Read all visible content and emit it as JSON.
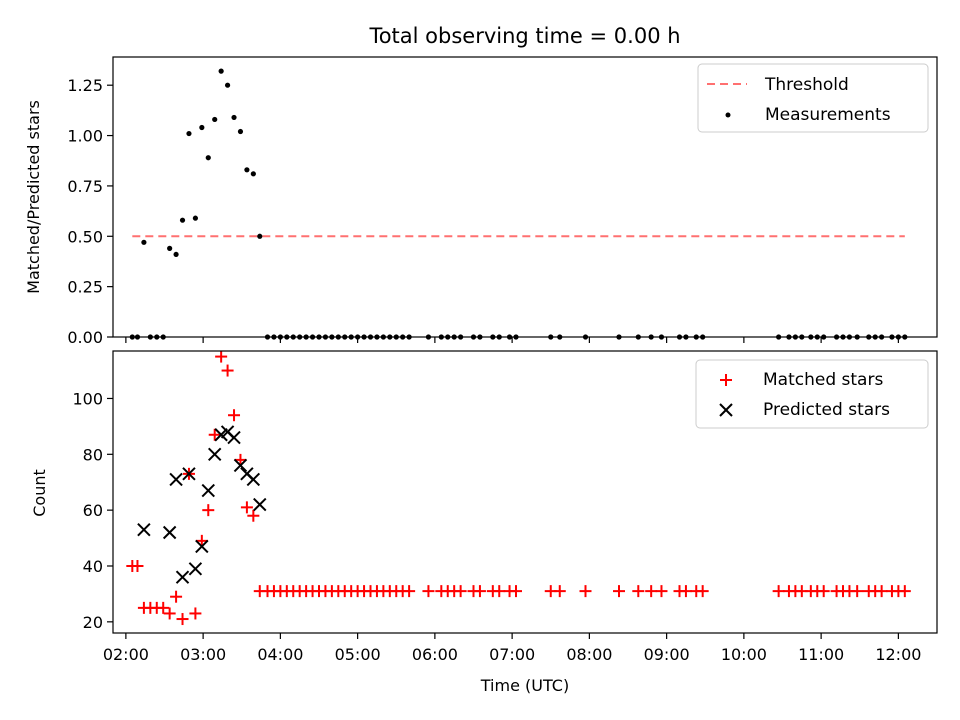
{
  "title": "Total observing time = 0.00 h",
  "xlabel": "Time (UTC)",
  "colors": {
    "threshold": "#ff7070",
    "measure": "#000000",
    "matched": "#ff0000",
    "predicted": "#000000"
  },
  "chart_data": [
    {
      "type": "scatter",
      "ylabel": "Matched/Predicted stars",
      "ylim": [
        0,
        1.39
      ],
      "xlim": [
        "01:50",
        "12:30"
      ],
      "x_unit": "time of day (UTC, HH:MM)",
      "yticks": [
        "0.00",
        "0.25",
        "0.50",
        "0.75",
        "1.00",
        "1.25"
      ],
      "legend_position": "top-right",
      "grid": false,
      "threshold": {
        "name": "Threshold",
        "value": 0.5,
        "x_range": [
          "02:05",
          "12:05"
        ],
        "style": "dashed"
      },
      "series": [
        {
          "name": "Measurements",
          "points": [
            [
              "02:05",
              0
            ],
            [
              "02:09",
              0
            ],
            [
              "02:14",
              0.47
            ],
            [
              "02:19",
              0
            ],
            [
              "02:24",
              0
            ],
            [
              "02:29",
              0
            ],
            [
              "02:34",
              0.44
            ],
            [
              "02:39",
              0.41
            ],
            [
              "02:44",
              0.58
            ],
            [
              "02:49",
              1.01
            ],
            [
              "02:54",
              0.59
            ],
            [
              "02:59",
              1.04
            ],
            [
              "03:04",
              0.89
            ],
            [
              "03:09",
              1.08
            ],
            [
              "03:14",
              1.32
            ],
            [
              "03:19",
              1.25
            ],
            [
              "03:24",
              1.09
            ],
            [
              "03:29",
              1.02
            ],
            [
              "03:34",
              0.83
            ],
            [
              "03:39",
              0.81
            ],
            [
              "03:44",
              0.5
            ],
            [
              "03:50",
              0
            ],
            [
              "03:55",
              0
            ],
            [
              "04:00",
              0
            ],
            [
              "04:05",
              0
            ],
            [
              "04:10",
              0
            ],
            [
              "04:15",
              0
            ],
            [
              "04:20",
              0
            ],
            [
              "04:25",
              0
            ],
            [
              "04:30",
              0
            ],
            [
              "04:35",
              0
            ],
            [
              "04:40",
              0
            ],
            [
              "04:45",
              0
            ],
            [
              "04:50",
              0
            ],
            [
              "04:55",
              0
            ],
            [
              "05:00",
              0
            ],
            [
              "05:05",
              0
            ],
            [
              "05:10",
              0
            ],
            [
              "05:15",
              0
            ],
            [
              "05:20",
              0
            ],
            [
              "05:25",
              0
            ],
            [
              "05:30",
              0
            ],
            [
              "05:35",
              0
            ],
            [
              "05:40",
              0
            ],
            [
              "05:55",
              0
            ],
            [
              "06:05",
              0
            ],
            [
              "06:10",
              0
            ],
            [
              "06:15",
              0
            ],
            [
              "06:20",
              0
            ],
            [
              "06:30",
              0
            ],
            [
              "06:35",
              0
            ],
            [
              "06:45",
              0
            ],
            [
              "06:50",
              0
            ],
            [
              "06:58",
              0
            ],
            [
              "07:03",
              0
            ],
            [
              "07:30",
              0
            ],
            [
              "07:37",
              0
            ],
            [
              "07:57",
              0
            ],
            [
              "08:23",
              0
            ],
            [
              "08:38",
              0
            ],
            [
              "08:48",
              0
            ],
            [
              "08:56",
              0
            ],
            [
              "09:10",
              0
            ],
            [
              "09:15",
              0
            ],
            [
              "09:23",
              0
            ],
            [
              "09:28",
              0
            ],
            [
              "10:27",
              0
            ],
            [
              "10:35",
              0
            ],
            [
              "10:40",
              0
            ],
            [
              "10:45",
              0
            ],
            [
              "10:52",
              0
            ],
            [
              "10:57",
              0
            ],
            [
              "11:02",
              0
            ],
            [
              "11:12",
              0
            ],
            [
              "11:17",
              0
            ],
            [
              "11:22",
              0
            ],
            [
              "11:28",
              0
            ],
            [
              "11:37",
              0
            ],
            [
              "11:42",
              0
            ],
            [
              "11:47",
              0
            ],
            [
              "11:55",
              0
            ],
            [
              "12:00",
              0
            ],
            [
              "12:05",
              0
            ]
          ]
        }
      ]
    },
    {
      "type": "scatter",
      "ylabel": "Count",
      "ylim": [
        16,
        117
      ],
      "xlim": [
        "01:50",
        "12:30"
      ],
      "x_unit": "time of day (UTC, HH:MM)",
      "yticks": [
        "20",
        "40",
        "60",
        "80",
        "100"
      ],
      "xticks": [
        "02:00",
        "03:00",
        "04:00",
        "05:00",
        "06:00",
        "07:00",
        "08:00",
        "09:00",
        "10:00",
        "11:00",
        "12:00"
      ],
      "legend_position": "top-right",
      "grid": false,
      "series": [
        {
          "name": "Matched stars",
          "marker": "plus",
          "points": [
            [
              "02:05",
              40
            ],
            [
              "02:09",
              40
            ],
            [
              "02:14",
              25
            ],
            [
              "02:19",
              25
            ],
            [
              "02:24",
              25
            ],
            [
              "02:29",
              25
            ],
            [
              "02:34",
              23
            ],
            [
              "02:39",
              29
            ],
            [
              "02:44",
              21
            ],
            [
              "02:49",
              73
            ],
            [
              "02:54",
              23
            ],
            [
              "02:59",
              49
            ],
            [
              "03:04",
              60
            ],
            [
              "03:09",
              87
            ],
            [
              "03:14",
              115
            ],
            [
              "03:19",
              110
            ],
            [
              "03:24",
              94
            ],
            [
              "03:29",
              78
            ],
            [
              "03:34",
              61
            ],
            [
              "03:39",
              58
            ],
            [
              "03:44",
              31
            ],
            [
              "03:50",
              31
            ],
            [
              "03:55",
              31
            ],
            [
              "04:00",
              31
            ],
            [
              "04:05",
              31
            ],
            [
              "04:10",
              31
            ],
            [
              "04:15",
              31
            ],
            [
              "04:20",
              31
            ],
            [
              "04:25",
              31
            ],
            [
              "04:30",
              31
            ],
            [
              "04:35",
              31
            ],
            [
              "04:40",
              31
            ],
            [
              "04:45",
              31
            ],
            [
              "04:50",
              31
            ],
            [
              "04:55",
              31
            ],
            [
              "05:00",
              31
            ],
            [
              "05:05",
              31
            ],
            [
              "05:10",
              31
            ],
            [
              "05:15",
              31
            ],
            [
              "05:20",
              31
            ],
            [
              "05:25",
              31
            ],
            [
              "05:30",
              31
            ],
            [
              "05:35",
              31
            ],
            [
              "05:40",
              31
            ],
            [
              "05:55",
              31
            ],
            [
              "06:05",
              31
            ],
            [
              "06:10",
              31
            ],
            [
              "06:15",
              31
            ],
            [
              "06:20",
              31
            ],
            [
              "06:30",
              31
            ],
            [
              "06:35",
              31
            ],
            [
              "06:45",
              31
            ],
            [
              "06:50",
              31
            ],
            [
              "06:58",
              31
            ],
            [
              "07:03",
              31
            ],
            [
              "07:30",
              31
            ],
            [
              "07:37",
              31
            ],
            [
              "07:57",
              31
            ],
            [
              "08:23",
              31
            ],
            [
              "08:38",
              31
            ],
            [
              "08:48",
              31
            ],
            [
              "08:56",
              31
            ],
            [
              "09:10",
              31
            ],
            [
              "09:15",
              31
            ],
            [
              "09:23",
              31
            ],
            [
              "09:28",
              31
            ],
            [
              "10:27",
              31
            ],
            [
              "10:35",
              31
            ],
            [
              "10:40",
              31
            ],
            [
              "10:45",
              31
            ],
            [
              "10:52",
              31
            ],
            [
              "10:57",
              31
            ],
            [
              "11:02",
              31
            ],
            [
              "11:12",
              31
            ],
            [
              "11:17",
              31
            ],
            [
              "11:22",
              31
            ],
            [
              "11:28",
              31
            ],
            [
              "11:37",
              31
            ],
            [
              "11:42",
              31
            ],
            [
              "11:47",
              31
            ],
            [
              "11:55",
              31
            ],
            [
              "12:00",
              31
            ],
            [
              "12:05",
              31
            ]
          ]
        },
        {
          "name": "Predicted stars",
          "marker": "x",
          "points": [
            [
              "02:14",
              53
            ],
            [
              "02:34",
              52
            ],
            [
              "02:39",
              71
            ],
            [
              "02:44",
              36
            ],
            [
              "02:49",
              73
            ],
            [
              "02:54",
              39
            ],
            [
              "02:59",
              47
            ],
            [
              "03:04",
              67
            ],
            [
              "03:09",
              80
            ],
            [
              "03:14",
              87
            ],
            [
              "03:19",
              88
            ],
            [
              "03:24",
              86
            ],
            [
              "03:29",
              76
            ],
            [
              "03:34",
              73
            ],
            [
              "03:39",
              71
            ],
            [
              "03:44",
              62
            ]
          ]
        }
      ]
    }
  ]
}
